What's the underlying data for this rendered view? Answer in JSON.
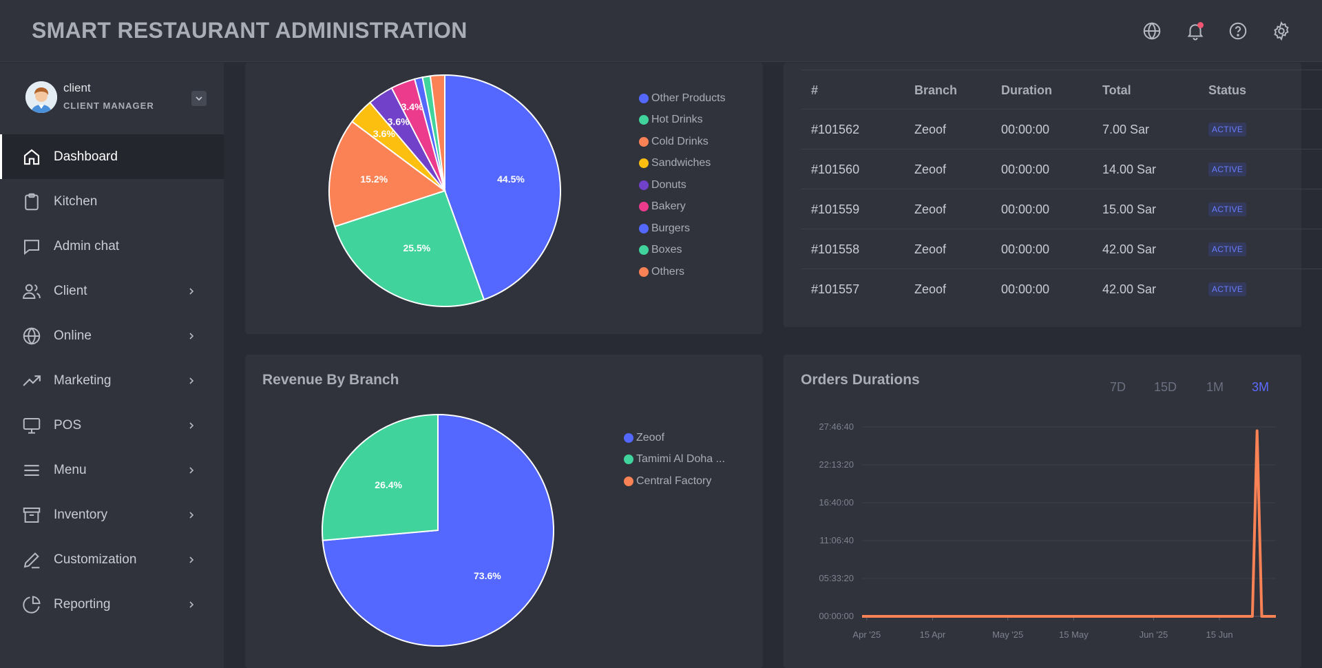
{
  "header": {
    "title": "SMART RESTAURANT ADMINISTRATION",
    "icons": [
      "globe-icon",
      "bell-icon",
      "help-icon",
      "gear-icon"
    ]
  },
  "user": {
    "name": "client",
    "role": "CLIENT MANAGER"
  },
  "sidebar": {
    "items": [
      {
        "label": "Dashboard",
        "icon": "home-icon",
        "active": true,
        "submenu": false
      },
      {
        "label": "Kitchen",
        "icon": "clipboard-icon",
        "active": false,
        "submenu": false
      },
      {
        "label": "Admin chat",
        "icon": "chat-icon",
        "active": false,
        "submenu": false
      },
      {
        "label": "Client",
        "icon": "users-icon",
        "active": false,
        "submenu": true
      },
      {
        "label": "Online",
        "icon": "globe-icon",
        "active": false,
        "submenu": true
      },
      {
        "label": "Marketing",
        "icon": "trending-up-icon",
        "active": false,
        "submenu": true
      },
      {
        "label": "POS",
        "icon": "monitor-icon",
        "active": false,
        "submenu": true
      },
      {
        "label": "Menu",
        "icon": "menu-lines-icon",
        "active": false,
        "submenu": true
      },
      {
        "label": "Inventory",
        "icon": "archive-icon",
        "active": false,
        "submenu": true
      },
      {
        "label": "Customization",
        "icon": "pen-icon",
        "active": false,
        "submenu": true
      },
      {
        "label": "Reporting",
        "icon": "pie-chart-icon",
        "active": false,
        "submenu": true
      }
    ]
  },
  "colors": {
    "blue": "#5468ff",
    "green": "#40d39c",
    "orange": "#fa8255",
    "yellow": "#fcbf0f",
    "purple": "#7241c9",
    "pink": "#ec3b8d"
  },
  "orders_table": {
    "columns": [
      "#",
      "Branch",
      "Duration",
      "Total",
      "Status"
    ],
    "rows": [
      [
        "#101562",
        "Zeoof",
        "00:00:00",
        "7.00 Sar",
        "ACTIVE"
      ],
      [
        "#101560",
        "Zeoof",
        "00:00:00",
        "14.00 Sar",
        "ACTIVE"
      ],
      [
        "#101559",
        "Zeoof",
        "00:00:00",
        "15.00 Sar",
        "ACTIVE"
      ],
      [
        "#101558",
        "Zeoof",
        "00:00:00",
        "42.00 Sar",
        "ACTIVE"
      ],
      [
        "#101557",
        "Zeoof",
        "00:00:00",
        "42.00 Sar",
        "ACTIVE"
      ]
    ]
  },
  "orders_durations": {
    "title": "Orders Durations",
    "ranges": [
      "7D",
      "15D",
      "1M",
      "3M"
    ],
    "active_range": "3M"
  },
  "revenue_by_branch": {
    "title": "Revenue By Branch"
  },
  "chart_data": [
    {
      "type": "pie",
      "title": "",
      "labels": [
        "Other Products",
        "Hot Drinks",
        "Cold Drinks",
        "Sandwiches",
        "Donuts",
        "Bakery",
        "Burgers",
        "Boxes",
        "Others"
      ],
      "order": [
        "Burgers",
        "Boxes",
        "Cold Drinks",
        "Sandwiches",
        "Donuts",
        "Bakery",
        "Other Products",
        "Hot Drinks",
        "Others"
      ],
      "values": {
        "Burgers": 44.5,
        "Boxes": 25.5,
        "Cold Drinks": 15.2,
        "Sandwiches": 3.6,
        "Donuts": 3.6,
        "Bakery": 3.4,
        "Other Products": 1.1,
        "Hot Drinks": 1.1,
        "Others": 2.0
      },
      "data_labels": {
        "Burgers": "44.5%",
        "Boxes": "25.5%",
        "Cold Drinks": "15.2%",
        "Sandwiches": "3.6%",
        "Donuts": "3.6%",
        "Bakery": "3.4%"
      },
      "colors": {
        "Other Products": "#5468ff",
        "Hot Drinks": "#40d39c",
        "Cold Drinks": "#fa8255",
        "Sandwiches": "#fcbf0f",
        "Donuts": "#7241c9",
        "Bakery": "#ec3b8d",
        "Burgers": "#5468ff",
        "Boxes": "#40d39c",
        "Others": "#fa8255"
      },
      "legend_position": "right"
    },
    {
      "type": "pie",
      "title": "Revenue By Branch",
      "labels": [
        "Zeoof",
        "Tamimi Al Doha ...",
        "Central Factory"
      ],
      "values": [
        73.6,
        26.4,
        0
      ],
      "data_labels": [
        "73.6%",
        "26.4%",
        ""
      ],
      "colors": [
        "#5468ff",
        "#40d39c",
        "#fa8255"
      ],
      "legend_position": "right"
    },
    {
      "type": "line",
      "title": "Orders Durations",
      "x_ticks": [
        "Apr '25",
        "15 Apr",
        "May '25",
        "15 May",
        "Jun '25",
        "15 Jun"
      ],
      "x_range": [
        "2025-03-31",
        "2025-06-27"
      ],
      "y_ticks": [
        "00:00:00",
        "05:33:20",
        "11:06:40",
        "16:40:00",
        "22:13:20",
        "27:46:40"
      ],
      "y_range_seconds": [
        0,
        100000
      ],
      "series": [
        {
          "color": "#fa8255",
          "points": [
            [
              "2025-03-31",
              0
            ],
            [
              "2025-06-22",
              0
            ],
            [
              "2025-06-23",
              98000
            ],
            [
              "2025-06-24",
              0
            ],
            [
              "2025-06-27",
              0
            ]
          ]
        }
      ],
      "grid": true
    }
  ]
}
